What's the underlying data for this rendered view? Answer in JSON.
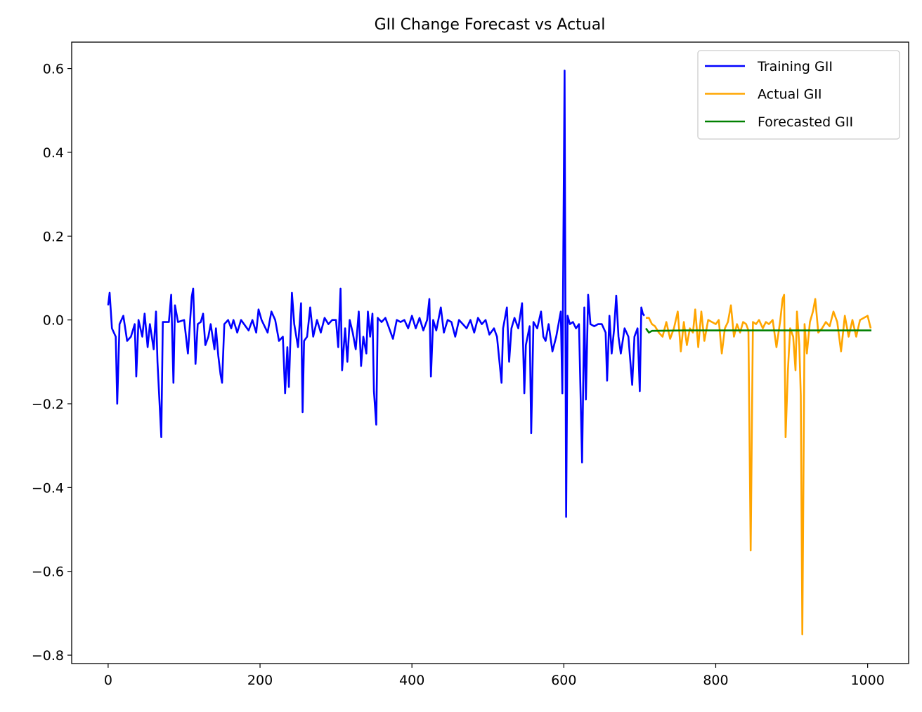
{
  "chart_data": {
    "type": "line",
    "title": "GII Change Forecast vs Actual",
    "xlabel": "",
    "ylabel": "",
    "xlim": [
      -48,
      1054
    ],
    "ylim": [
      -0.82,
      0.663
    ],
    "x_ticks": [
      0,
      200,
      400,
      600,
      800,
      1000
    ],
    "x_tick_labels": [
      "0",
      "200",
      "400",
      "600",
      "800",
      "1000"
    ],
    "y_ticks": [
      0.6,
      0.4,
      0.2,
      0.0,
      -0.2,
      -0.4,
      -0.6,
      -0.8
    ],
    "y_tick_labels": [
      "0.6",
      "0.4",
      "0.2",
      "0.0",
      "−0.2",
      "−0.4",
      "−0.6",
      "−0.8"
    ],
    "grid": false,
    "legend_position": "top-right",
    "series": [
      {
        "name": "Training GII",
        "color": "#0000ff",
        "x": [
          0,
          2,
          5,
          10,
          12,
          15,
          20,
          25,
          30,
          35,
          37,
          40,
          45,
          48,
          52,
          55,
          60,
          63,
          65,
          70,
          72,
          80,
          83,
          86,
          88,
          92,
          100,
          105,
          108,
          110,
          112,
          115,
          118,
          122,
          125,
          128,
          132,
          135,
          140,
          142,
          145,
          148,
          150,
          153,
          158,
          162,
          165,
          170,
          175,
          185,
          190,
          195,
          198,
          202,
          210,
          215,
          220,
          225,
          230,
          233,
          236,
          238,
          242,
          245,
          250,
          254,
          256,
          258,
          262,
          266,
          270,
          275,
          280,
          285,
          290,
          295,
          300,
          303,
          306,
          308,
          312,
          315,
          318,
          322,
          326,
          330,
          333,
          336,
          340,
          342,
          345,
          348,
          350,
          353,
          355,
          360,
          365,
          370,
          375,
          380,
          385,
          390,
          395,
          400,
          405,
          410,
          415,
          420,
          423,
          425,
          428,
          432,
          438,
          442,
          447,
          452,
          457,
          462,
          467,
          472,
          477,
          482,
          487,
          492,
          497,
          502,
          508,
          512,
          518,
          520,
          525,
          528,
          531,
          535,
          540,
          545,
          548,
          550,
          555,
          557,
          560,
          565,
          570,
          573,
          576,
          580,
          585,
          590,
          596,
          598,
          601,
          603,
          605,
          608,
          612,
          616,
          620,
          624,
          627,
          629,
          632,
          635,
          640,
          645,
          650,
          655,
          657,
          660,
          663,
          666,
          669,
          672,
          675,
          680,
          685,
          690,
          693,
          697,
          700,
          702,
          704,
          706
        ],
        "y": [
          0.035,
          0.065,
          -0.02,
          -0.04,
          -0.2,
          -0.01,
          0.01,
          -0.05,
          -0.04,
          -0.01,
          -0.135,
          0.0,
          -0.04,
          0.015,
          -0.065,
          -0.01,
          -0.07,
          0.02,
          -0.1,
          -0.28,
          -0.005,
          -0.005,
          0.06,
          -0.15,
          0.035,
          -0.005,
          0.0,
          -0.08,
          0.0,
          0.055,
          0.075,
          -0.105,
          -0.01,
          -0.005,
          0.015,
          -0.06,
          -0.04,
          -0.01,
          -0.07,
          -0.02,
          -0.085,
          -0.13,
          -0.15,
          -0.01,
          0.0,
          -0.02,
          0.0,
          -0.03,
          0.0,
          -0.025,
          0.0,
          -0.03,
          0.025,
          0.0,
          -0.03,
          0.02,
          0.0,
          -0.05,
          -0.04,
          -0.175,
          -0.065,
          -0.16,
          0.065,
          -0.01,
          -0.065,
          0.04,
          -0.22,
          -0.05,
          -0.04,
          0.03,
          -0.04,
          0.0,
          -0.03,
          0.005,
          -0.01,
          0.0,
          0.0,
          -0.065,
          0.075,
          -0.12,
          -0.02,
          -0.1,
          0.0,
          -0.03,
          -0.07,
          0.02,
          -0.11,
          -0.04,
          -0.08,
          0.02,
          -0.04,
          0.015,
          -0.17,
          -0.25,
          0.005,
          -0.005,
          0.005,
          -0.02,
          -0.045,
          0.0,
          -0.005,
          0.0,
          -0.02,
          0.01,
          -0.02,
          0.005,
          -0.025,
          0.0,
          0.05,
          -0.135,
          0.0,
          -0.025,
          0.03,
          -0.03,
          0.0,
          -0.005,
          -0.04,
          0.0,
          -0.01,
          -0.02,
          0.0,
          -0.03,
          0.005,
          -0.01,
          0.0,
          -0.035,
          -0.02,
          -0.04,
          -0.15,
          -0.02,
          0.03,
          -0.1,
          -0.02,
          0.005,
          -0.02,
          0.04,
          -0.175,
          -0.06,
          -0.015,
          -0.27,
          -0.005,
          -0.02,
          0.02,
          -0.04,
          -0.05,
          -0.01,
          -0.075,
          -0.04,
          0.02,
          -0.175,
          0.595,
          -0.47,
          0.01,
          -0.01,
          -0.005,
          -0.02,
          -0.01,
          -0.34,
          0.03,
          -0.19,
          0.06,
          -0.01,
          -0.015,
          -0.01,
          -0.01,
          -0.03,
          -0.145,
          0.01,
          -0.08,
          -0.025,
          0.058,
          -0.04,
          -0.08,
          -0.02,
          -0.04,
          -0.155,
          -0.04,
          -0.02,
          -0.17,
          0.03,
          0.015,
          0.01
        ]
      },
      {
        "name": "Actual GII",
        "color": "#ffa500",
        "x": [
          708,
          712,
          716,
          720,
          725,
          730,
          735,
          740,
          745,
          750,
          754,
          758,
          762,
          766,
          770,
          773,
          777,
          781,
          785,
          790,
          795,
          800,
          804,
          808,
          812,
          816,
          820,
          824,
          828,
          832,
          836,
          840,
          843,
          846,
          849,
          853,
          857,
          862,
          866,
          870,
          875,
          880,
          885,
          888,
          890,
          892,
          895,
          898,
          902,
          905,
          907,
          910,
          912,
          914,
          917,
          920,
          924,
          928,
          931,
          935,
          940,
          945,
          950,
          955,
          960,
          965,
          970,
          975,
          980,
          985,
          990,
          995,
          1000,
          1004
        ],
        "y": [
          0.005,
          0.005,
          -0.01,
          -0.015,
          -0.03,
          -0.04,
          -0.005,
          -0.045,
          -0.02,
          0.02,
          -0.075,
          -0.005,
          -0.06,
          -0.02,
          -0.03,
          0.025,
          -0.065,
          0.02,
          -0.05,
          0.0,
          -0.005,
          -0.01,
          0.0,
          -0.08,
          -0.02,
          -0.005,
          0.035,
          -0.04,
          -0.01,
          -0.03,
          -0.005,
          -0.01,
          -0.025,
          -0.55,
          -0.005,
          -0.01,
          0.0,
          -0.02,
          -0.005,
          -0.01,
          0.0,
          -0.065,
          0.0,
          0.05,
          0.06,
          -0.28,
          -0.12,
          -0.02,
          -0.04,
          -0.12,
          0.02,
          -0.06,
          -0.18,
          -0.75,
          -0.01,
          -0.08,
          -0.005,
          0.02,
          0.05,
          -0.03,
          -0.02,
          -0.005,
          -0.015,
          0.02,
          -0.005,
          -0.075,
          0.01,
          -0.04,
          0.0,
          -0.04,
          0.0,
          0.005,
          0.01,
          -0.02
        ]
      },
      {
        "name": "Forecasted GII",
        "color": "#008000",
        "x": [
          708,
          712,
          716,
          760,
          800,
          850,
          900,
          950,
          1005
        ],
        "y": [
          -0.02,
          -0.03,
          -0.026,
          -0.025,
          -0.025,
          -0.025,
          -0.025,
          -0.025,
          -0.025
        ]
      }
    ]
  }
}
